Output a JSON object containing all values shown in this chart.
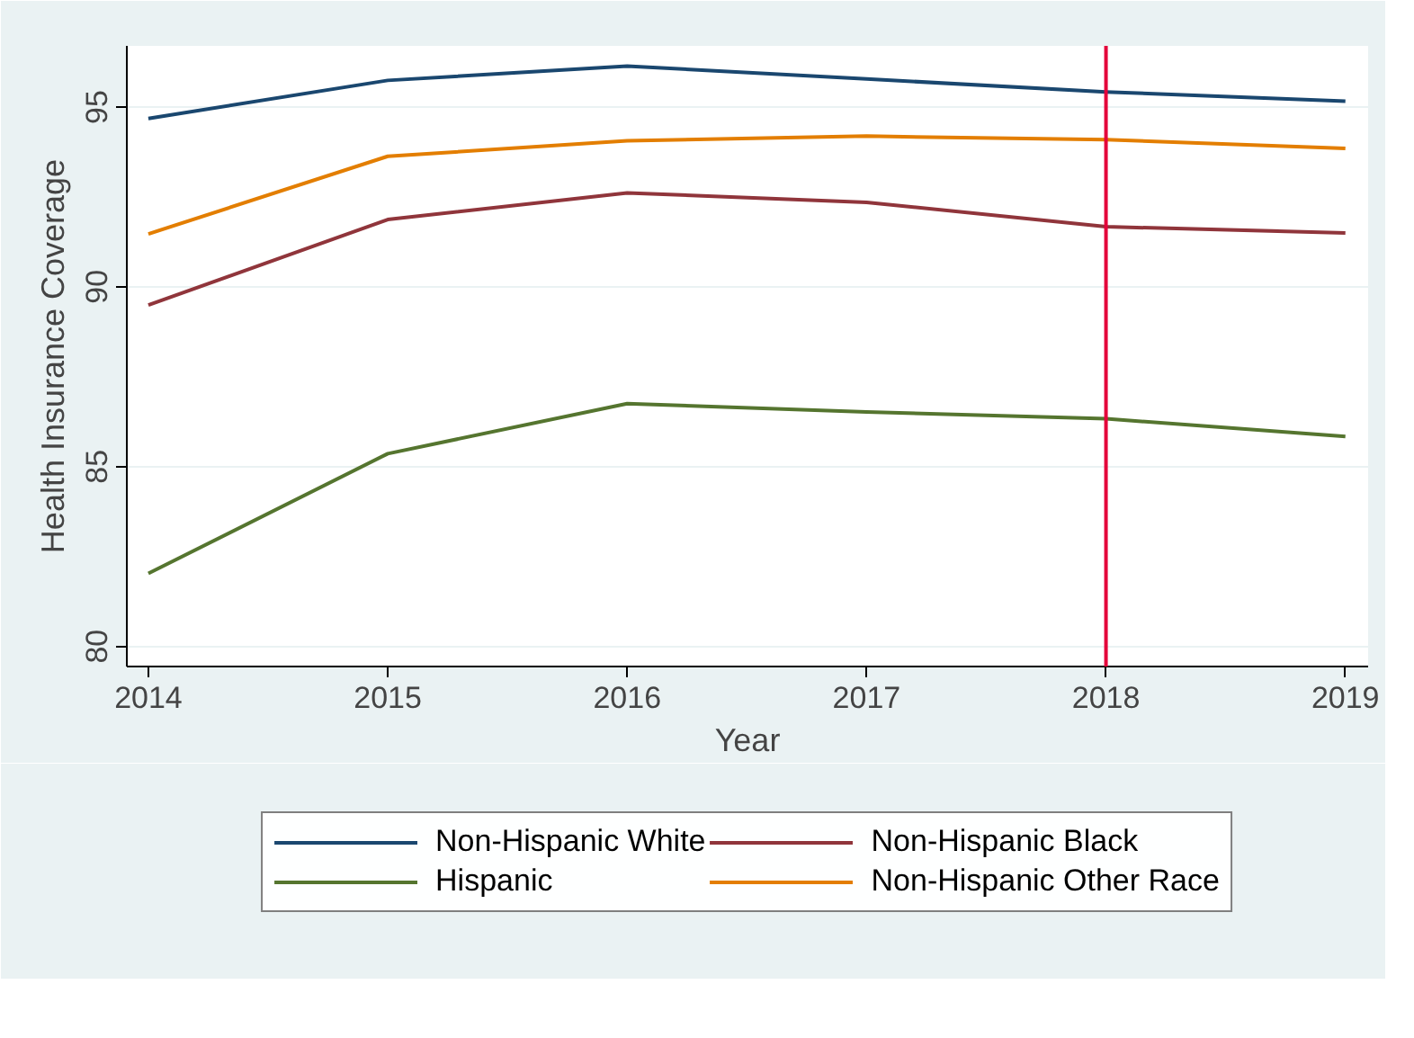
{
  "chart_data": {
    "type": "line",
    "xlabel": "Year",
    "ylabel": "Health Insurance Coverage",
    "x": [
      2014,
      2015,
      2016,
      2017,
      2018,
      2019
    ],
    "xlim": [
      2013.91,
      2019.095
    ],
    "ylim": [
      79.44,
      96.7
    ],
    "xticks": [
      2014,
      2015,
      2016,
      2017,
      2018,
      2019
    ],
    "yticks": [
      80,
      85,
      90,
      95
    ],
    "series": [
      {
        "name": "Non-Hispanic White",
        "color": "#1a476f",
        "values": [
          94.68,
          95.74,
          96.14,
          95.78,
          95.42,
          95.16
        ]
      },
      {
        "name": "Non-Hispanic Black",
        "color": "#90353b",
        "values": [
          89.49,
          91.87,
          92.61,
          92.35,
          91.67,
          91.5
        ]
      },
      {
        "name": "Hispanic",
        "color": "#55752f",
        "values": [
          82.03,
          85.36,
          86.75,
          86.52,
          86.33,
          85.84
        ]
      },
      {
        "name": "Non-Hispanic Other Race",
        "color": "#e37e00",
        "values": [
          91.47,
          93.63,
          94.06,
          94.19,
          94.09,
          93.85
        ]
      }
    ],
    "ref_lines": [
      {
        "axis": "x",
        "value": 2018,
        "color": "#e4003a"
      }
    ],
    "grid": "y",
    "legend": "bottom",
    "line_style": "solid",
    "marker": "none"
  }
}
